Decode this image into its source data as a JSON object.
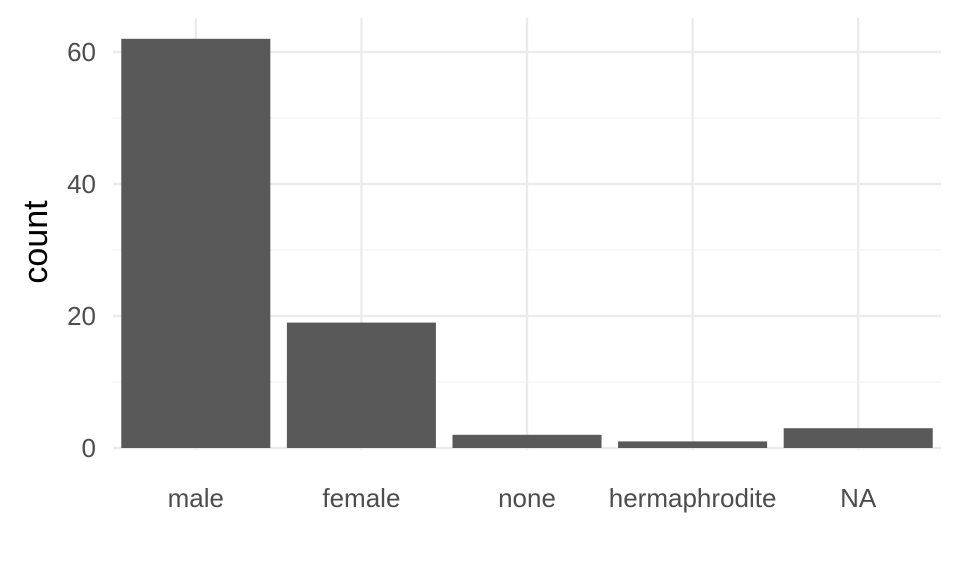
{
  "chart_data": {
    "type": "bar",
    "title": "",
    "xlabel": "",
    "ylabel": "count",
    "categories": [
      "male",
      "female",
      "none",
      "hermaphrodite",
      "NA"
    ],
    "values": [
      62,
      19,
      2,
      1,
      3
    ],
    "ylim": [
      0,
      62.5
    ],
    "yticks": [
      0,
      20,
      40,
      60
    ],
    "grid": true,
    "legend": "none",
    "colors": {
      "bar": "#595959",
      "grid_major": "#ebebeb",
      "grid_minor": "#f4f4f4",
      "tick_text": "#4d4d4d",
      "axis_title": "#000000"
    }
  }
}
